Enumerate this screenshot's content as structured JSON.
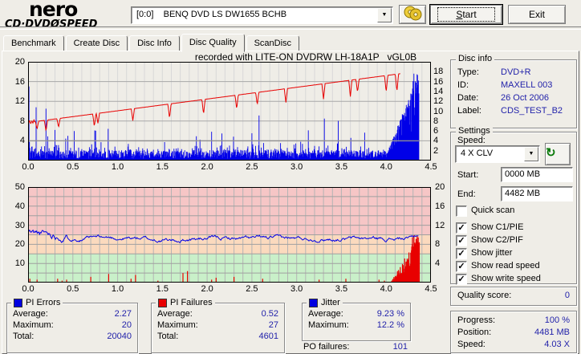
{
  "window": {
    "bg": "#EFEDE7",
    "value_blue": "#2222AA"
  },
  "header": {
    "logo_line1": "nero",
    "logo_line2_pre": "CD·DVD",
    "logo_slash": "Ø",
    "logo_line2_post": "SPEED",
    "drive_select_value": "[0:0]    BENQ DVD LS DW1655 BCHB",
    "start_label": "Start",
    "exit_label": "Exit"
  },
  "tabs": [
    {
      "label": "Benchmark",
      "active": false
    },
    {
      "label": "Create Disc",
      "active": false
    },
    {
      "label": "Disc Info",
      "active": false
    },
    {
      "label": "Disc Quality",
      "active": true
    },
    {
      "label": "ScanDisc",
      "active": false
    }
  ],
  "disc_info": {
    "title": "Disc info",
    "rows": [
      [
        "Type:",
        "DVD+R"
      ],
      [
        "ID:",
        "MAXELL 003"
      ],
      [
        "Date:",
        "26 Oct 2006"
      ],
      [
        "Label:",
        "CDS_TEST_B2"
      ]
    ]
  },
  "settings": {
    "title": "Settings",
    "speed_label": "Speed:",
    "speed_value": "4 X CLV",
    "start_label": "Start:",
    "start_value": "0000 MB",
    "end_label": "End:",
    "end_value": "4482 MB",
    "checkboxes": [
      {
        "label": "Quick scan",
        "checked": false
      },
      {
        "label": "Show C1/PIE",
        "checked": true
      },
      {
        "label": "Show C2/PIF",
        "checked": true
      },
      {
        "label": "Show jitter",
        "checked": true
      },
      {
        "label": "Show read speed",
        "checked": true
      },
      {
        "label": "Show write speed",
        "checked": true
      }
    ]
  },
  "quality": {
    "label": "Quality score:",
    "value": "0"
  },
  "progress": {
    "rows": [
      [
        "Progress:",
        "100 %"
      ],
      [
        "Position:",
        "4481 MB"
      ],
      [
        "Speed:",
        "4.03 X"
      ]
    ]
  },
  "stats": {
    "boxes": [
      {
        "title": "PI Errors",
        "legend_color": "#0000E0",
        "rows": [
          [
            "Average:",
            "2.27"
          ],
          [
            "Maximum:",
            "20"
          ],
          [
            "Total:",
            "20040"
          ]
        ]
      },
      {
        "title": "PI Failures",
        "legend_color": "#E80000",
        "rows": [
          [
            "Average:",
            "0.52"
          ],
          [
            "Maximum:",
            "27"
          ],
          [
            "Total:",
            "4601"
          ]
        ]
      },
      {
        "title": "Jitter",
        "legend_color": "#0000E0",
        "rows": [
          [
            "Average:",
            "9.23 %"
          ],
          [
            "Maximum:",
            "12.2 %"
          ]
        ]
      }
    ],
    "po_failures_label": "PO failures:",
    "po_failures_value": "101"
  },
  "chart_data": [
    {
      "type": "bar",
      "title": "recorded with LITE-ON DVDRW LH-18A1P   vGL0B",
      "x_range": [
        0,
        4.5
      ],
      "x_ticks": [
        "0.0",
        "0.5",
        "1.0",
        "1.5",
        "2.0",
        "2.5",
        "3.0",
        "3.5",
        "4.0",
        "4.5"
      ],
      "left_ticks": [
        4,
        8,
        12,
        16,
        20
      ],
      "right_ticks": [
        2,
        4,
        6,
        8,
        10,
        12,
        14,
        16,
        18
      ],
      "y_range": [
        0,
        20
      ],
      "grid_minor_x": 0.1,
      "series": {
        "pie_errors": {
          "type": "bar",
          "color": "#0000E8",
          "seed": 7,
          "step": 0.005,
          "data_end_gb": 4.365,
          "typical_level": 2,
          "start_spikes": [
            [
              0.012,
              15
            ],
            [
              0.09,
              10.8
            ],
            [
              0.2,
              10.5
            ],
            [
              0.3,
              6.2
            ]
          ],
          "burst_start_gb": 4.0,
          "burst_peak": 20,
          "stats": {
            "average": 2.27,
            "maximum": 20,
            "total": 20040
          }
        },
        "write_speed": {
          "type": "line",
          "color": "#E80000",
          "start": [
            0,
            7.7
          ],
          "end": [
            4.16,
            17.6
          ],
          "dips": [
            [
              0.1,
              1.6
            ],
            [
              0.2,
              2.2
            ],
            [
              0.34,
              1.8
            ],
            [
              0.74,
              2.6
            ],
            [
              0.78,
              2.0
            ],
            [
              1.17,
              2.4
            ],
            [
              1.58,
              2.9
            ],
            [
              1.96,
              3.0
            ],
            [
              2.33,
              2.8
            ],
            [
              2.56,
              2.5
            ],
            [
              2.88,
              2.8
            ],
            [
              3.3,
              3.1
            ],
            [
              3.6,
              3.3
            ],
            [
              3.68,
              2.6
            ],
            [
              4.0,
              3.4
            ],
            [
              4.12,
              3.6
            ]
          ]
        },
        "read_speed": {
          "type": "line",
          "color": "#909090",
          "constant_value": 4,
          "data_end_gb": 4.365
        }
      }
    },
    {
      "type": "line",
      "x_range": [
        0,
        4.5
      ],
      "x_ticks": [
        "0.0",
        "0.5",
        "1.0",
        "1.5",
        "2.0",
        "2.5",
        "3.0",
        "3.5",
        "4.0",
        "4.5"
      ],
      "left_ticks": [
        10,
        20,
        30,
        40,
        50
      ],
      "right_ticks": [
        4,
        8,
        12,
        16,
        20
      ],
      "left_range": [
        0,
        50
      ],
      "right_range": [
        0,
        20
      ],
      "bands": [
        {
          "from": 0,
          "to": 15,
          "color": "#C9F0C9"
        },
        {
          "from": 15,
          "to": 25,
          "color": "#FBDABE"
        },
        {
          "from": 25,
          "to": 50,
          "color": "#F6C6C6"
        }
      ],
      "series": {
        "jitter": {
          "type": "line",
          "color": "#0000E8",
          "axis": "right",
          "seed": 11,
          "average_pct": 9.23,
          "maximum_pct": 12.2,
          "start_level": 10.6,
          "mid_dip_gb": 1.5,
          "end_rise": 10.5
        },
        "pi_failures": {
          "type": "bar",
          "color": "#E80000",
          "axis": "left",
          "seed": 13,
          "smalls": [
            [
              0.02,
              2
            ],
            [
              0.1,
              1.5
            ],
            [
              0.33,
              2
            ],
            [
              0.38,
              1
            ],
            [
              0.43,
              1.5
            ],
            [
              0.7,
              3
            ],
            [
              0.9,
              4.5
            ],
            [
              1.15,
              2
            ],
            [
              1.2,
              4
            ],
            [
              1.45,
              1
            ],
            [
              1.73,
              5
            ],
            [
              1.78,
              6
            ],
            [
              2.05,
              1.5
            ],
            [
              2.1,
              2.5
            ],
            [
              2.3,
              3
            ],
            [
              2.62,
              2
            ],
            [
              3.25,
              1.5
            ],
            [
              3.55,
              2
            ],
            [
              3.92,
              1.5
            ],
            [
              3.98,
              1
            ]
          ],
          "burst_start_gb": 4.05,
          "burst_end_gb": 4.37,
          "burst_peak": 27,
          "stats": {
            "average": 0.52,
            "maximum": 27,
            "total": 4601
          }
        }
      }
    }
  ]
}
